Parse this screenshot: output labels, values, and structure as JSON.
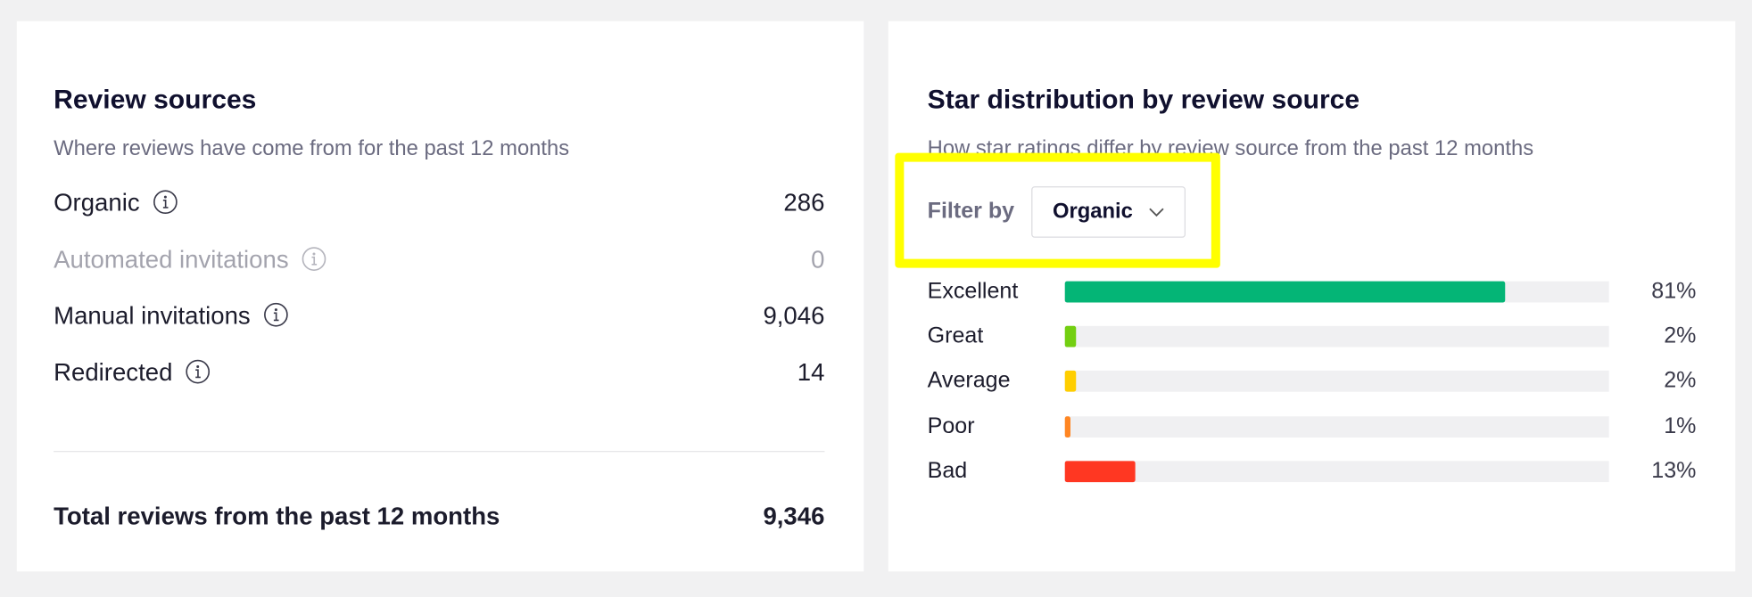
{
  "review_sources": {
    "title": "Review sources",
    "subtitle": "Where reviews have come from for the past 12 months",
    "rows": [
      {
        "label": "Organic",
        "value": "286"
      },
      {
        "label": "Automated invitations",
        "value": "0",
        "disabled": true
      },
      {
        "label": "Manual invitations",
        "value": "9,046"
      },
      {
        "label": "Redirected",
        "value": "14"
      }
    ],
    "total": {
      "label": "Total reviews from the past 12 months",
      "value": "9,346"
    }
  },
  "star_distribution": {
    "title": "Star distribution by review source",
    "subtitle": "How star ratings differ by review source from the past 12 months",
    "filter_label": "Filter by",
    "filter_value": "Organic",
    "chart_data": {
      "type": "bar",
      "orientation": "horizontal",
      "categories": [
        "Excellent",
        "Great",
        "Average",
        "Poor",
        "Bad"
      ],
      "values": [
        81,
        2,
        2,
        1,
        13
      ],
      "value_labels": [
        "81%",
        "2%",
        "2%",
        "1%",
        "13%"
      ],
      "colors": [
        "#04b576",
        "#73cf11",
        "#ffce00",
        "#ff8622",
        "#ff3722"
      ],
      "xlim": [
        0,
        100
      ]
    }
  }
}
